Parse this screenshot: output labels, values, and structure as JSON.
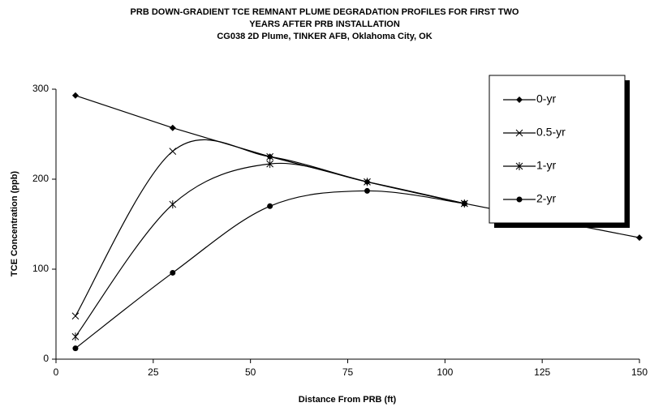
{
  "chart_data": {
    "type": "line",
    "title": "PRB DOWN-GRADIENT TCE REMNANT PLUME DEGRADATION PROFILES FOR FIRST TWO",
    "title_line2": "YEARS AFTER PRB INSTALLATION",
    "subtitle": "CG038 2D Plume, TINKER AFB, Oklahoma City, OK",
    "x_label": "Distance From PRB (ft)",
    "y_label": "TCE Concentration (ppb)",
    "xlim": [
      0,
      150
    ],
    "xticks": [
      0,
      25,
      50,
      75,
      100,
      125,
      150
    ],
    "ylim": [
      0,
      300
    ],
    "yticks": [
      0,
      100,
      200,
      300
    ],
    "legend": "top-right",
    "series": [
      {
        "name": "0-yr",
        "color": "#000000",
        "marker": "diamond",
        "smooth": false,
        "x": [
          5,
          30,
          55,
          80,
          105,
          150
        ],
        "values": [
          293,
          257,
          225,
          197,
          173,
          135
        ]
      },
      {
        "name": "0.5-yr",
        "color": "#000000",
        "marker": "x",
        "smooth": true,
        "x": [
          5,
          30,
          55,
          80,
          105
        ],
        "values": [
          48,
          231,
          225,
          197,
          173
        ]
      },
      {
        "name": "1-yr",
        "color": "#000000",
        "marker": "star",
        "smooth": true,
        "x": [
          5,
          30,
          55,
          80,
          105
        ],
        "values": [
          25,
          172,
          217,
          197,
          173
        ]
      },
      {
        "name": "2-yr",
        "color": "#000000",
        "marker": "circle",
        "smooth": true,
        "x": [
          5,
          30,
          55,
          80,
          105
        ],
        "values": [
          12,
          96,
          170,
          187,
          173
        ]
      }
    ]
  }
}
